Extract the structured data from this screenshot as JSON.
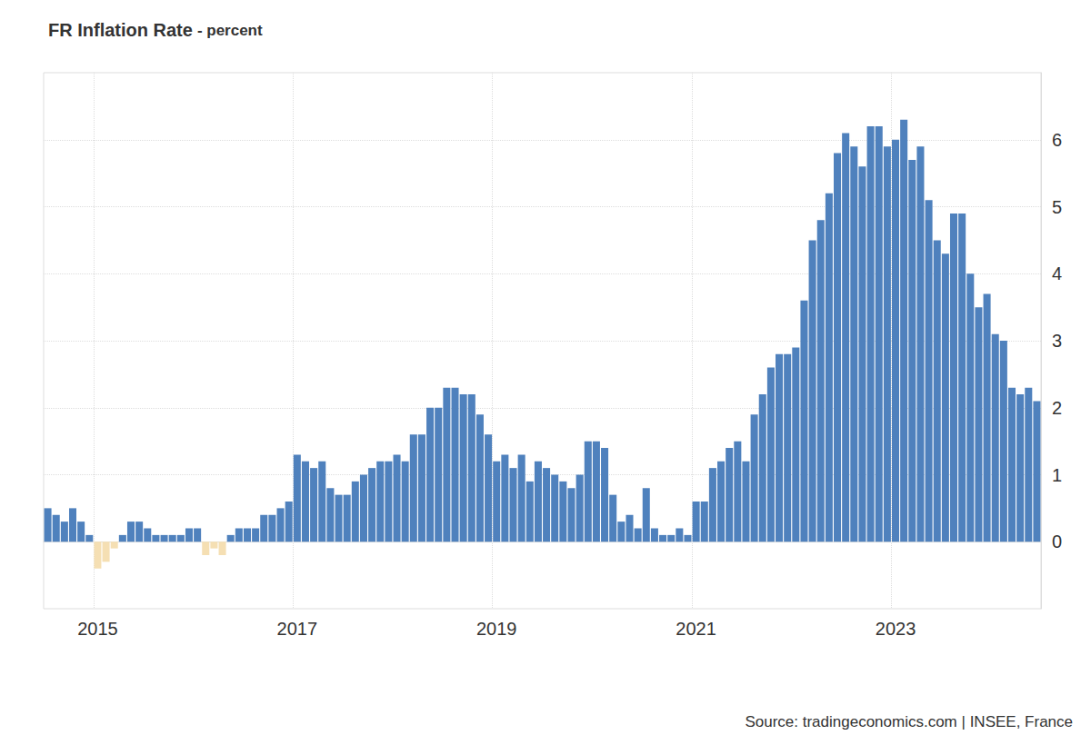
{
  "chart_data": {
    "type": "bar",
    "title": "FR Inflation Rate",
    "subtitle": "- percent",
    "source": "Source: tradingeconomics.com | INSEE, France",
    "categories": [
      null,
      null,
      null,
      null,
      null,
      null,
      "2015",
      null,
      null,
      null,
      null,
      null,
      null,
      null,
      null,
      null,
      null,
      null,
      null,
      null,
      null,
      null,
      null,
      null,
      null,
      null,
      null,
      null,
      null,
      null,
      "2017",
      null,
      null,
      null,
      null,
      null,
      null,
      null,
      null,
      null,
      null,
      null,
      null,
      null,
      null,
      null,
      null,
      null,
      null,
      null,
      null,
      null,
      null,
      null,
      "2019",
      null,
      null,
      null,
      null,
      null,
      null,
      null,
      null,
      null,
      null,
      null,
      null,
      null,
      null,
      null,
      null,
      null,
      null,
      null,
      null,
      null,
      null,
      null,
      "2021",
      null,
      null,
      null,
      null,
      null,
      null,
      null,
      null,
      null,
      null,
      null,
      null,
      null,
      null,
      null,
      null,
      null,
      null,
      null,
      null,
      null,
      null,
      null,
      "2023",
      null,
      null,
      null,
      null,
      null,
      null,
      null,
      null,
      null,
      null,
      null,
      null,
      null,
      null,
      null,
      null,
      null
    ],
    "values": [
      0.5,
      0.4,
      0.3,
      0.5,
      0.3,
      0.1,
      -0.4,
      -0.3,
      -0.1,
      0.1,
      0.3,
      0.3,
      0.2,
      0.1,
      0.1,
      0.1,
      0.1,
      0.2,
      0.2,
      -0.2,
      -0.1,
      -0.2,
      0.1,
      0.2,
      0.2,
      0.2,
      0.4,
      0.4,
      0.5,
      0.6,
      1.3,
      1.2,
      1.1,
      1.2,
      0.8,
      0.7,
      0.7,
      0.9,
      1.0,
      1.1,
      1.2,
      1.2,
      1.3,
      1.2,
      1.6,
      1.6,
      2.0,
      2.0,
      2.3,
      2.3,
      2.2,
      2.2,
      1.9,
      1.6,
      1.2,
      1.3,
      1.1,
      1.3,
      0.9,
      1.2,
      1.1,
      1.0,
      0.9,
      0.8,
      1.0,
      1.5,
      1.5,
      1.4,
      0.7,
      0.3,
      0.4,
      0.2,
      0.8,
      0.2,
      0.1,
      0.1,
      0.2,
      0.1,
      0.6,
      0.6,
      1.1,
      1.2,
      1.4,
      1.5,
      1.2,
      1.9,
      2.2,
      2.6,
      2.8,
      2.8,
      2.9,
      3.6,
      4.5,
      4.8,
      5.2,
      5.8,
      6.1,
      5.9,
      5.6,
      6.2,
      6.2,
      5.9,
      6.0,
      6.3,
      5.7,
      5.9,
      5.1,
      4.5,
      4.3,
      4.9,
      4.9,
      4.0,
      3.5,
      3.7,
      3.1,
      3.0,
      2.3,
      2.2,
      2.3,
      2.1
    ],
    "colors": [
      "#4f81bd",
      "#4f81bd",
      "#4f81bd",
      "#4f81bd",
      "#4f81bd",
      "#4f81bd",
      "#f5dfb3",
      "#f5dfb3",
      "#f5dfb3",
      "#4f81bd",
      "#4f81bd",
      "#4f81bd",
      "#4f81bd",
      "#4f81bd",
      "#4f81bd",
      "#4f81bd",
      "#4f81bd",
      "#4f81bd",
      "#4f81bd",
      "#f5dfb3",
      "#f5dfb3",
      "#f5dfb3",
      "#4f81bd",
      "#4f81bd",
      "#4f81bd",
      "#4f81bd",
      "#4f81bd",
      "#4f81bd",
      "#4f81bd",
      "#4f81bd",
      "#4f81bd",
      "#4f81bd",
      "#4f81bd",
      "#4f81bd",
      "#4f81bd",
      "#4f81bd",
      "#4f81bd",
      "#4f81bd",
      "#4f81bd",
      "#4f81bd",
      "#4f81bd",
      "#4f81bd",
      "#4f81bd",
      "#4f81bd",
      "#4f81bd",
      "#4f81bd",
      "#4f81bd",
      "#4f81bd",
      "#4f81bd",
      "#4f81bd",
      "#4f81bd",
      "#4f81bd",
      "#4f81bd",
      "#4f81bd",
      "#4f81bd",
      "#4f81bd",
      "#4f81bd",
      "#4f81bd",
      "#4f81bd",
      "#4f81bd",
      "#4f81bd",
      "#4f81bd",
      "#4f81bd",
      "#4f81bd",
      "#4f81bd",
      "#4f81bd",
      "#4f81bd",
      "#4f81bd",
      "#4f81bd",
      "#4f81bd",
      "#4f81bd",
      "#4f81bd",
      "#4f81bd",
      "#4f81bd",
      "#4f81bd",
      "#4f81bd",
      "#4f81bd",
      "#4f81bd",
      "#4f81bd",
      "#4f81bd",
      "#4f81bd",
      "#4f81bd",
      "#4f81bd",
      "#4f81bd",
      "#4f81bd",
      "#4f81bd",
      "#4f81bd",
      "#4f81bd",
      "#4f81bd",
      "#4f81bd",
      "#4f81bd",
      "#4f81bd",
      "#4f81bd",
      "#4f81bd",
      "#4f81bd",
      "#4f81bd",
      "#4f81bd",
      "#4f81bd",
      "#4f81bd",
      "#4f81bd",
      "#4f81bd",
      "#4f81bd",
      "#4f81bd",
      "#4f81bd",
      "#4f81bd",
      "#4f81bd",
      "#4f81bd",
      "#4f81bd",
      "#4f81bd",
      "#4f81bd",
      "#4f81bd",
      "#4f81bd",
      "#4f81bd",
      "#4f81bd",
      "#4f81bd",
      "#4f81bd",
      "#4f81bd",
      "#4f81bd",
      "#4f81bd",
      "#4f81bd"
    ],
    "ylim": [
      -1,
      7
    ],
    "yticks": [
      0,
      1,
      2,
      3,
      4,
      5,
      6
    ],
    "grid": true
  }
}
